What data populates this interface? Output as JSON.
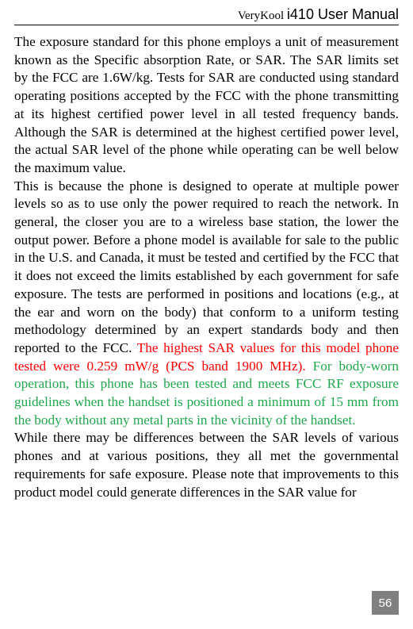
{
  "header": {
    "brand": "VeryKool ",
    "product": "i410 User Manual"
  },
  "paragraphs": {
    "p1": "The exposure standard for this phone employs a unit of measurement known as the Specific absorption Rate, or SAR. The SAR limits set by the FCC are 1.6W/kg. Tests for SAR are conducted using standard operating positions accepted by the FCC with the phone transmitting at its highest certified power level in all tested frequency bands. Although the SAR is determined at the highest certified power level, the actual SAR level of the phone while operating can be well below the maximum value.",
    "p2a": "This is because the phone is designed to operate at multiple power levels so as to use only the power required to reach the network. In general, the closer you are to a wireless base station, the lower the output power. Before a phone model is available for sale to the public in the U.S. and Canada, it must be tested and certified by the FCC that it does not exceed the limits established by each government for safe exposure. The tests are performed in positions and locations (e.g., at the ear and worn on the body) that conform to a uniform testing methodology determined by an expert standards body and then reported to the FCC. ",
    "p2b": "The highest SAR values for this model phone tested were 0.259 mW/g (PCS band 1900 MHz). ",
    "p2c": "For body-worn operation, this phone has been tested and meets FCC RF exposure guidelines when the handset is positioned a minimum of 15 mm from the body without any metal parts in the vicinity of the handset.",
    "p3": "While there may be differences between the SAR levels of various phones and at various positions, they all met the governmental requirements for safe exposure. Please note that improvements to this product model could generate differences in the SAR value for"
  },
  "page_number": "56",
  "styling": {
    "body_fontsize": 17.2,
    "line_height": 1.32,
    "text_color": "#000000",
    "red_color": "#ff0000",
    "green_color": "#1fa84d",
    "page_num_bg": "#808080",
    "page_num_fg": "#ffffff"
  }
}
